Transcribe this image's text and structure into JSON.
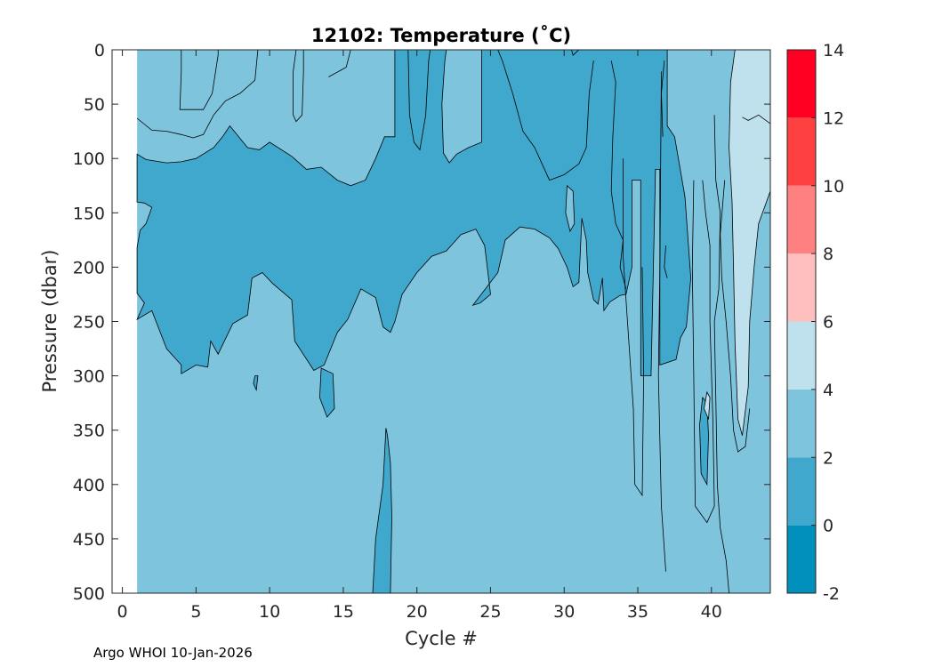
{
  "chart_data": {
    "type": "contour",
    "title": "12102:  Temperature (˚C)",
    "xlabel": "Cycle #",
    "ylabel": "Pressure (dbar)",
    "xlim": [
      -0.7,
      44
    ],
    "ylim": [
      0,
      500
    ],
    "y_reversed": true,
    "x_ticks": [
      0,
      5,
      10,
      15,
      20,
      25,
      30,
      35,
      40
    ],
    "y_ticks": [
      0,
      50,
      100,
      150,
      200,
      250,
      300,
      350,
      400,
      450,
      500
    ],
    "data_x_range": [
      1,
      44
    ],
    "levels": [
      -2,
      0,
      2,
      4,
      6,
      8,
      10,
      12,
      14
    ],
    "level_colors": [
      "#008fbb",
      "#40a8cc",
      "#7fc4dd",
      "#bfe1ee",
      "#ffbfbf",
      "#ff8080",
      "#ff4040",
      "#ff0023"
    ],
    "colorbar": {
      "ticks": [
        -2,
        0,
        2,
        4,
        6,
        8,
        10,
        12,
        14
      ]
    },
    "regions": [
      {
        "range": "0-2",
        "points": [
          [
            1,
            140
          ],
          [
            1.5,
            141
          ],
          [
            2,
            145
          ],
          [
            1.6,
            160
          ],
          [
            1.2,
            166
          ],
          [
            1,
            182
          ],
          [
            1,
            224
          ],
          [
            1.5,
            233
          ],
          [
            1,
            248
          ],
          [
            2,
            240
          ],
          [
            3,
            275
          ],
          [
            4,
            290
          ],
          [
            4,
            298
          ],
          [
            5,
            290
          ],
          [
            5.8,
            292
          ],
          [
            6,
            268
          ],
          [
            6.5,
            280
          ],
          [
            7.5,
            252
          ],
          [
            8.5,
            244
          ],
          [
            8.8,
            210
          ],
          [
            9.5,
            205
          ],
          [
            10.2,
            215
          ],
          [
            11.5,
            230
          ],
          [
            11.7,
            268
          ],
          [
            13,
            295
          ],
          [
            13.7,
            290
          ],
          [
            14.6,
            260
          ],
          [
            15.3,
            248
          ],
          [
            16.2,
            220
          ],
          [
            17.2,
            228
          ],
          [
            17.7,
            255
          ],
          [
            18.2,
            260
          ],
          [
            18.5,
            250
          ],
          [
            19,
            225
          ],
          [
            20,
            205
          ],
          [
            21,
            190
          ],
          [
            22,
            185
          ],
          [
            23,
            170
          ],
          [
            24,
            165
          ],
          [
            24.6,
            180
          ],
          [
            25,
            225
          ],
          [
            24.3,
            233
          ],
          [
            23.8,
            235
          ],
          [
            25.5,
            205
          ],
          [
            26,
            175
          ],
          [
            27,
            163
          ],
          [
            28,
            165
          ],
          [
            29,
            173
          ],
          [
            29.6,
            183
          ],
          [
            30.2,
            200
          ],
          [
            30.6,
            218
          ],
          [
            31,
            214
          ],
          [
            31.2,
            155
          ],
          [
            31.5,
            175
          ],
          [
            31.6,
            205
          ],
          [
            32,
            230
          ],
          [
            32.3,
            234
          ],
          [
            32.6,
            210
          ],
          [
            32.7,
            240
          ],
          [
            33.1,
            232
          ],
          [
            33.8,
            226
          ],
          [
            34.2,
            225
          ],
          [
            34.6,
            200
          ],
          [
            34.6,
            120
          ],
          [
            35.2,
            120
          ],
          [
            35.2,
            300
          ],
          [
            35.9,
            300
          ],
          [
            36.2,
            110
          ],
          [
            36.5,
            110
          ],
          [
            36.5,
            290
          ],
          [
            37.6,
            285
          ],
          [
            37.9,
            265
          ],
          [
            38.3,
            255
          ],
          [
            38.6,
            210
          ],
          [
            38.2,
            135
          ],
          [
            37.5,
            80
          ],
          [
            37,
            70
          ],
          [
            37,
            0
          ],
          [
            18.5,
            0
          ],
          [
            18.5,
            80
          ],
          [
            17.8,
            80
          ],
          [
            17.2,
            100
          ],
          [
            16.5,
            120
          ],
          [
            15.5,
            125
          ],
          [
            14.6,
            120
          ],
          [
            13.5,
            108
          ],
          [
            12.5,
            110
          ],
          [
            11.5,
            98
          ],
          [
            10,
            85
          ],
          [
            9.3,
            92
          ],
          [
            8.5,
            90
          ],
          [
            7.3,
            70
          ],
          [
            6.8,
            80
          ],
          [
            6.2,
            90
          ],
          [
            5,
            100
          ],
          [
            4,
            103
          ],
          [
            3,
            104
          ],
          [
            1.6,
            101
          ],
          [
            1,
            96
          ]
        ]
      },
      {
        "range": "-2-0",
        "points": [
          [
            22,
            0
          ],
          [
            24.4,
            0
          ],
          [
            24.4,
            85
          ],
          [
            23.5,
            90
          ],
          [
            22.7,
            96
          ],
          [
            22.2,
            104
          ],
          [
            21.8,
            95
          ],
          [
            21.7,
            50
          ],
          [
            21.9,
            10
          ]
        ]
      },
      {
        "range": "-2-0",
        "points": [
          [
            30.2,
            125
          ],
          [
            30.6,
            130
          ],
          [
            30.7,
            160
          ],
          [
            30.4,
            167
          ],
          [
            30.1,
            150
          ]
        ]
      },
      {
        "range": "0-2",
        "points": [
          [
            9,
            300
          ],
          [
            8.9,
            307
          ],
          [
            9.1,
            313
          ],
          [
            9.2,
            300
          ]
        ]
      },
      {
        "range": "0-2",
        "points": [
          [
            13.5,
            293
          ],
          [
            14.3,
            298
          ],
          [
            14.4,
            330
          ],
          [
            13.9,
            338
          ],
          [
            13.4,
            320
          ]
        ]
      },
      {
        "range": "0-2",
        "points": [
          [
            17.9,
            348
          ],
          [
            17.7,
            400
          ],
          [
            17.2,
            450
          ],
          [
            17,
            500
          ],
          [
            18.2,
            500
          ],
          [
            18.3,
            430
          ],
          [
            18.2,
            380
          ],
          [
            18,
            355
          ]
        ]
      },
      {
        "range": "0-2",
        "points": [
          [
            39.4,
            320
          ],
          [
            39.2,
            345
          ],
          [
            39.3,
            390
          ],
          [
            39.7,
            400
          ],
          [
            39.8,
            355
          ],
          [
            39.7,
            325
          ]
        ]
      },
      {
        "range": "4-6",
        "points": [
          [
            41.6,
            0
          ],
          [
            44,
            0
          ],
          [
            44,
            130
          ],
          [
            43.6,
            145
          ],
          [
            43.2,
            160
          ],
          [
            42.9,
            200
          ],
          [
            42.6,
            250
          ],
          [
            42.5,
            310
          ],
          [
            42.1,
            355
          ],
          [
            41.8,
            340
          ],
          [
            41.6,
            270
          ],
          [
            41.5,
            200
          ],
          [
            41.4,
            140
          ],
          [
            41.2,
            90
          ],
          [
            41.3,
            30
          ]
        ]
      },
      {
        "range": "4-6",
        "points": [
          [
            39.7,
            315
          ],
          [
            39.5,
            330
          ],
          [
            39.8,
            340
          ],
          [
            39.9,
            320
          ]
        ]
      }
    ],
    "contour_lines": [
      [
        [
          4,
          0
        ],
        [
          4,
          20
        ],
        [
          3.9,
          55
        ],
        [
          5.5,
          55
        ],
        [
          6.1,
          40
        ],
        [
          6.5,
          5
        ],
        [
          6.5,
          0
        ]
      ],
      [
        [
          1,
          63
        ],
        [
          2,
          74
        ],
        [
          3,
          75
        ],
        [
          4,
          78
        ],
        [
          4.8,
          81
        ],
        [
          5.5,
          78
        ],
        [
          6.2,
          60
        ],
        [
          7,
          47
        ],
        [
          8,
          40
        ],
        [
          9,
          28
        ],
        [
          9.2,
          0
        ]
      ],
      [
        [
          11.8,
          0
        ],
        [
          11.6,
          20
        ],
        [
          11.6,
          60
        ],
        [
          11.8,
          66
        ],
        [
          12.2,
          60
        ],
        [
          12.3,
          20
        ],
        [
          12.3,
          0
        ]
      ],
      [
        [
          14,
          25
        ],
        [
          15.2,
          16
        ],
        [
          15.5,
          0
        ]
      ],
      [
        [
          19.4,
          0
        ],
        [
          19.5,
          60
        ],
        [
          19.8,
          85
        ],
        [
          20.2,
          92
        ],
        [
          20.6,
          60
        ],
        [
          20.8,
          10
        ],
        [
          20.9,
          0
        ]
      ],
      [
        [
          25.5,
          0
        ],
        [
          25.8,
          10
        ],
        [
          26.5,
          40
        ],
        [
          27.2,
          75
        ],
        [
          28,
          90
        ],
        [
          28.5,
          105
        ],
        [
          29,
          120
        ],
        [
          30,
          115
        ],
        [
          31,
          105
        ],
        [
          31.5,
          90
        ],
        [
          31.7,
          40
        ],
        [
          32,
          10
        ]
      ],
      [
        [
          33.2,
          10
        ],
        [
          33.5,
          30
        ],
        [
          33.3,
          80
        ],
        [
          33.2,
          130
        ],
        [
          33.5,
          160
        ],
        [
          34,
          175
        ],
        [
          33.8,
          200
        ],
        [
          34.2,
          220
        ]
      ],
      [
        [
          36.8,
          10
        ],
        [
          36.6,
          40
        ],
        [
          36.7,
          80
        ]
      ],
      [
        [
          40.2,
          60
        ],
        [
          40.3,
          120
        ],
        [
          40.6,
          150
        ],
        [
          40.5,
          220
        ],
        [
          40.2,
          250
        ],
        [
          40.3,
          320
        ],
        [
          40.4,
          400
        ],
        [
          40.6,
          440
        ],
        [
          41,
          470
        ],
        [
          41.2,
          500
        ]
      ],
      [
        [
          34,
          100
        ],
        [
          34,
          190
        ],
        [
          34.3,
          250
        ],
        [
          34.7,
          330
        ],
        [
          34.8,
          400
        ],
        [
          35.3,
          410
        ],
        [
          35.4,
          300
        ],
        [
          35.3,
          200
        ]
      ],
      [
        [
          36.6,
          20
        ],
        [
          36.5,
          200
        ],
        [
          36.4,
          300
        ],
        [
          36.6,
          420
        ],
        [
          36.9,
          480
        ]
      ],
      [
        [
          36.9,
          180
        ],
        [
          36.8,
          200
        ],
        [
          37,
          210
        ]
      ],
      [
        [
          38.8,
          120
        ],
        [
          38.7,
          200
        ],
        [
          38.8,
          300
        ],
        [
          38.9,
          420
        ],
        [
          39.7,
          435
        ],
        [
          40.2,
          420
        ],
        [
          40.1,
          340
        ],
        [
          39.9,
          250
        ],
        [
          39.9,
          180
        ],
        [
          39.6,
          150
        ],
        [
          39.4,
          120
        ]
      ],
      [
        [
          40.9,
          120
        ],
        [
          40.6,
          170
        ],
        [
          40.7,
          210
        ],
        [
          41,
          250
        ],
        [
          41.3,
          300
        ],
        [
          41.5,
          350
        ],
        [
          41.8,
          370
        ],
        [
          42.3,
          365
        ],
        [
          42.6,
          330
        ]
      ],
      [
        [
          30.5,
          0
        ],
        [
          30.6,
          5
        ],
        [
          31.0,
          0
        ]
      ],
      [
        [
          42.1,
          62
        ],
        [
          42.5,
          65
        ],
        [
          43.2,
          60
        ],
        [
          44,
          68
        ]
      ]
    ]
  },
  "footer": {
    "text": "Argo WHOI 10-Jan-2026"
  }
}
